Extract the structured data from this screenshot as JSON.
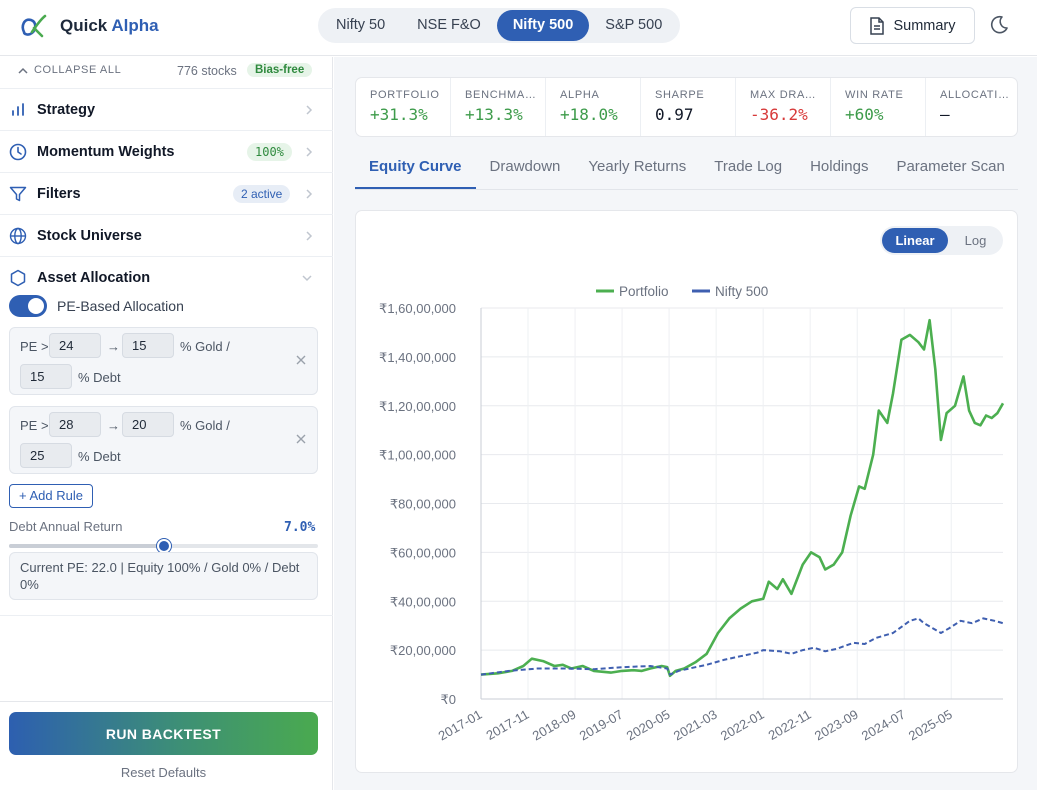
{
  "header": {
    "brand_part1": "Quick",
    "brand_part2": "Alpha",
    "market_tabs": [
      {
        "label": "Nifty 50",
        "active": false
      },
      {
        "label": "NSE F&O",
        "active": false
      },
      {
        "label": "Nifty 500",
        "active": true
      },
      {
        "label": "S&P 500",
        "active": false
      }
    ],
    "summary_label": "Summary",
    "icons": {
      "summary": "document-icon",
      "theme": "moon-icon"
    }
  },
  "sidebar": {
    "collapse_label": "COLLAPSE ALL",
    "stock_count": "776 stocks",
    "bias_badge": "Bias-free",
    "sections": {
      "strategy": {
        "title": "Strategy",
        "icon": "bar-chart-icon"
      },
      "momentum": {
        "title": "Momentum Weights",
        "badge": "100%",
        "icon": "clock-icon"
      },
      "filters": {
        "title": "Filters",
        "badge": "2 active",
        "icon": "filter-icon"
      },
      "universe": {
        "title": "Stock Universe",
        "icon": "globe-icon"
      },
      "allocation": {
        "title": "Asset Allocation",
        "icon": "hexagon-icon"
      }
    },
    "pe_toggle_label": "PE-Based Allocation",
    "pe_toggle_on": true,
    "rules": [
      {
        "pe_label": "PE >",
        "pe_value": "24",
        "arrow": "→",
        "gold_value": "15",
        "gold_label": "% Gold /",
        "debt_value": "15",
        "debt_label": "% Debt"
      },
      {
        "pe_label": "PE >",
        "pe_value": "28",
        "arrow": "→",
        "gold_value": "20",
        "gold_label": "% Gold /",
        "debt_value": "25",
        "debt_label": "% Debt"
      }
    ],
    "add_rule_label": "+ Add Rule",
    "debt_return_label": "Debt Annual Return",
    "debt_return_value": "7.0%",
    "debt_slider_fraction": 0.5,
    "pe_info": "Current PE: 22.0 | Equity 100% / Gold 0% / Debt 0%",
    "run_label": "RUN BACKTEST",
    "reset_label": "Reset Defaults"
  },
  "metrics": [
    {
      "label": "PORTFOLIO",
      "value": "+31.3%",
      "tone": "pos"
    },
    {
      "label": "BENCHMARK",
      "value": "+13.3%",
      "tone": "pos"
    },
    {
      "label": "ALPHA",
      "value": "+18.0%",
      "tone": "pos"
    },
    {
      "label": "SHARPE",
      "value": "0.97",
      "tone": "neu"
    },
    {
      "label": "MAX DRAWDOWN",
      "value": "-36.2%",
      "tone": "neg"
    },
    {
      "label": "WIN RATE",
      "value": "+60%",
      "tone": "pos"
    },
    {
      "label": "ALLOCATION",
      "value": "—",
      "tone": "neu"
    }
  ],
  "view_tabs": [
    {
      "label": "Equity Curve",
      "active": true
    },
    {
      "label": "Drawdown",
      "active": false
    },
    {
      "label": "Yearly Returns",
      "active": false
    },
    {
      "label": "Trade Log",
      "active": false
    },
    {
      "label": "Holdings",
      "active": false
    },
    {
      "label": "Parameter Scan",
      "active": false
    }
  ],
  "scale_toggle": {
    "linear": "Linear",
    "log": "Log",
    "active": "linear"
  },
  "colors": {
    "accent": "#2f5fb3",
    "portfolio": "#4caf50",
    "benchmark": "#3f5fb0",
    "positive": "#3d9b4a",
    "negative": "#d73a3a"
  },
  "chart_data": {
    "type": "line",
    "title": "",
    "xlabel": "",
    "ylabel": "",
    "ylim": [
      0,
      16000000
    ],
    "yticks": [
      0,
      2000000,
      4000000,
      6000000,
      8000000,
      10000000,
      12000000,
      14000000,
      16000000
    ],
    "ytick_labels": [
      "₹0",
      "₹20,00,000",
      "₹40,00,000",
      "₹60,00,000",
      "₹80,00,000",
      "₹1,00,00,000",
      "₹1,20,00,000",
      "₹1,40,00,000",
      "₹1,60,00,000"
    ],
    "xlim": [
      2017.0,
      2026.25
    ],
    "xtick_labels": [
      "2017-01",
      "2017-11",
      "2018-09",
      "2019-07",
      "2020-05",
      "2021-03",
      "2022-01",
      "2022-11",
      "2023-09",
      "2024-07",
      "2025-05"
    ],
    "xtick_positions": [
      2017.0,
      2017.833,
      2018.667,
      2019.5,
      2020.333,
      2021.167,
      2022.0,
      2022.833,
      2023.667,
      2024.5,
      2025.333
    ],
    "legend": "top-center",
    "grid": true,
    "series": [
      {
        "name": "Portfolio",
        "style": "solid",
        "points": [
          [
            2017.0,
            1000000
          ],
          [
            2017.3,
            1050000
          ],
          [
            2017.55,
            1150000
          ],
          [
            2017.75,
            1350000
          ],
          [
            2017.9,
            1650000
          ],
          [
            2018.1,
            1550000
          ],
          [
            2018.3,
            1350000
          ],
          [
            2018.45,
            1400000
          ],
          [
            2018.6,
            1250000
          ],
          [
            2018.8,
            1350000
          ],
          [
            2019.0,
            1150000
          ],
          [
            2019.3,
            1080000
          ],
          [
            2019.5,
            1150000
          ],
          [
            2019.7,
            1180000
          ],
          [
            2019.85,
            1150000
          ],
          [
            2020.0,
            1250000
          ],
          [
            2020.2,
            1350000
          ],
          [
            2020.3,
            1300000
          ],
          [
            2020.35,
            950000
          ],
          [
            2020.45,
            1150000
          ],
          [
            2020.6,
            1250000
          ],
          [
            2020.8,
            1500000
          ],
          [
            2021.0,
            1850000
          ],
          [
            2021.2,
            2700000
          ],
          [
            2021.4,
            3300000
          ],
          [
            2021.6,
            3700000
          ],
          [
            2021.8,
            4000000
          ],
          [
            2022.0,
            4100000
          ],
          [
            2022.1,
            4800000
          ],
          [
            2022.25,
            4500000
          ],
          [
            2022.35,
            4900000
          ],
          [
            2022.5,
            4300000
          ],
          [
            2022.7,
            5500000
          ],
          [
            2022.85,
            6000000
          ],
          [
            2023.0,
            5800000
          ],
          [
            2023.1,
            5300000
          ],
          [
            2023.25,
            5500000
          ],
          [
            2023.4,
            6000000
          ],
          [
            2023.55,
            7500000
          ],
          [
            2023.7,
            8700000
          ],
          [
            2023.8,
            8600000
          ],
          [
            2023.95,
            10000000
          ],
          [
            2024.05,
            11800000
          ],
          [
            2024.2,
            11300000
          ],
          [
            2024.3,
            12500000
          ],
          [
            2024.45,
            14700000
          ],
          [
            2024.6,
            14900000
          ],
          [
            2024.75,
            14600000
          ],
          [
            2024.85,
            14300000
          ],
          [
            2024.95,
            15500000
          ],
          [
            2025.05,
            13500000
          ],
          [
            2025.15,
            10600000
          ],
          [
            2025.25,
            11700000
          ],
          [
            2025.4,
            12000000
          ],
          [
            2025.55,
            13200000
          ],
          [
            2025.65,
            11800000
          ],
          [
            2025.75,
            11300000
          ],
          [
            2025.85,
            11200000
          ],
          [
            2025.95,
            11600000
          ],
          [
            2026.05,
            11500000
          ],
          [
            2026.15,
            11700000
          ],
          [
            2026.25,
            12100000
          ]
        ]
      },
      {
        "name": "Nifty 500",
        "style": "dashed",
        "points": [
          [
            2017.0,
            1000000
          ],
          [
            2017.5,
            1150000
          ],
          [
            2018.0,
            1250000
          ],
          [
            2018.5,
            1250000
          ],
          [
            2019.0,
            1220000
          ],
          [
            2019.5,
            1300000
          ],
          [
            2020.0,
            1350000
          ],
          [
            2020.3,
            1250000
          ],
          [
            2020.35,
            1000000
          ],
          [
            2020.5,
            1150000
          ],
          [
            2020.8,
            1300000
          ],
          [
            2021.0,
            1400000
          ],
          [
            2021.3,
            1600000
          ],
          [
            2021.6,
            1750000
          ],
          [
            2021.9,
            1900000
          ],
          [
            2022.0,
            2000000
          ],
          [
            2022.3,
            1950000
          ],
          [
            2022.5,
            1850000
          ],
          [
            2022.7,
            2000000
          ],
          [
            2022.9,
            2100000
          ],
          [
            2023.1,
            1950000
          ],
          [
            2023.3,
            2050000
          ],
          [
            2023.6,
            2300000
          ],
          [
            2023.8,
            2250000
          ],
          [
            2024.0,
            2500000
          ],
          [
            2024.3,
            2700000
          ],
          [
            2024.6,
            3200000
          ],
          [
            2024.75,
            3300000
          ],
          [
            2024.85,
            3100000
          ],
          [
            2025.0,
            2900000
          ],
          [
            2025.15,
            2700000
          ],
          [
            2025.3,
            2900000
          ],
          [
            2025.5,
            3200000
          ],
          [
            2025.7,
            3100000
          ],
          [
            2025.9,
            3300000
          ],
          [
            2026.1,
            3200000
          ],
          [
            2026.25,
            3100000
          ]
        ]
      }
    ]
  }
}
